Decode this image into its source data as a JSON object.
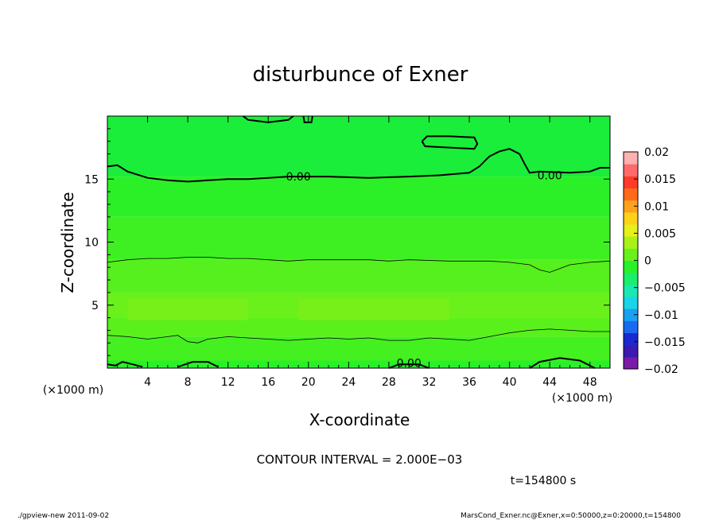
{
  "chart_data": {
    "type": "heatmap",
    "title": "disturbunce of Exner",
    "xlabel": "X-coordinate",
    "ylabel": "Z-coordinate",
    "x_unit_label": "(×1000 m)",
    "x_unit_label_right": "(×1000 m)",
    "xlim": [
      0,
      50
    ],
    "ylim": [
      0,
      20
    ],
    "x_ticks": [
      4,
      8,
      12,
      16,
      20,
      24,
      28,
      32,
      36,
      40,
      44,
      48
    ],
    "y_ticks": [
      5,
      10,
      15
    ],
    "colorbar": {
      "ticks": [
        "0.02",
        "0.015",
        "0.01",
        "0.005",
        "0",
        "−0.005",
        "−0.01",
        "−0.015",
        "−0.02"
      ],
      "range": [
        -0.02,
        0.02
      ],
      "colors": [
        "#7a1aa8",
        "#3a1ab0",
        "#1a2ad0",
        "#1a6af0",
        "#1aa0f0",
        "#1ad4e8",
        "#1ae8b0",
        "#1aee6a",
        "#2af02a",
        "#6af01a",
        "#aaf01a",
        "#e6f01a",
        "#ffd21a",
        "#ffa21a",
        "#ff6a1a",
        "#ff3a2a",
        "#ff6a6a",
        "#ffb0b0"
      ]
    },
    "bands": [
      {
        "z_from": 0,
        "z_to": 0.6,
        "color": "#2af02a"
      },
      {
        "z_from": 0.6,
        "z_to": 2.5,
        "color": "#44f020"
      },
      {
        "z_from": 2.5,
        "z_to": 4.0,
        "color": "#5af01c"
      },
      {
        "z_from": 4.0,
        "z_to": 6.0,
        "color": "#6af01a"
      },
      {
        "z_from": 6.0,
        "z_to": 8.6,
        "color": "#55f01d"
      },
      {
        "z_from": 8.6,
        "z_to": 12.0,
        "color": "#3ef022"
      },
      {
        "z_from": 12.0,
        "z_to": 15.2,
        "color": "#2cf027"
      },
      {
        "z_from": 15.2,
        "z_to": 20,
        "color": "#1aee3a"
      }
    ],
    "contour_labels": [
      {
        "x": 19,
        "z": 15.2,
        "text": "0.00"
      },
      {
        "x": 44,
        "z": 15.3,
        "text": "0.00"
      },
      {
        "x": 30,
        "z": 0.4,
        "text": "0.00"
      }
    ],
    "contours": {
      "zero_upper": [
        [
          0,
          16.0
        ],
        [
          1,
          16.1
        ],
        [
          2,
          15.6
        ],
        [
          4,
          15.1
        ],
        [
          6,
          14.9
        ],
        [
          8,
          14.8
        ],
        [
          10,
          14.9
        ],
        [
          12,
          15.0
        ],
        [
          14,
          15.0
        ],
        [
          16,
          15.1
        ],
        [
          18,
          15.2
        ],
        [
          22,
          15.2
        ],
        [
          26,
          15.1
        ],
        [
          30,
          15.2
        ],
        [
          33,
          15.3
        ],
        [
          36,
          15.5
        ],
        [
          37,
          16.0
        ],
        [
          38,
          16.8
        ],
        [
          39,
          17.2
        ],
        [
          40,
          17.4
        ],
        [
          41,
          17.0
        ],
        [
          41.5,
          16.2
        ],
        [
          42,
          15.5
        ],
        [
          43,
          15.6
        ],
        [
          46,
          15.5
        ],
        [
          48,
          15.6
        ],
        [
          49,
          15.9
        ],
        [
          50,
          15.9
        ]
      ],
      "zero_top_left": [
        [
          13.5,
          20
        ],
        [
          14,
          19.7
        ],
        [
          16,
          19.5
        ],
        [
          18,
          19.7
        ],
        [
          18.5,
          20
        ]
      ],
      "zero_top_small": [
        [
          19.5,
          20
        ],
        [
          19.6,
          19.5
        ],
        [
          20.3,
          19.5
        ],
        [
          20.4,
          20
        ]
      ],
      "zero_closed": [
        [
          31.3,
          18.0
        ],
        [
          31.6,
          17.6
        ],
        [
          34,
          17.5
        ],
        [
          36.5,
          17.4
        ],
        [
          36.8,
          17.8
        ],
        [
          36.5,
          18.3
        ],
        [
          34,
          18.4
        ],
        [
          31.8,
          18.4
        ],
        [
          31.3,
          18.0
        ]
      ],
      "mid": [
        [
          0,
          8.4
        ],
        [
          2,
          8.6
        ],
        [
          4,
          8.7
        ],
        [
          6,
          8.7
        ],
        [
          8,
          8.8
        ],
        [
          10,
          8.8
        ],
        [
          12,
          8.7
        ],
        [
          14,
          8.7
        ],
        [
          16,
          8.6
        ],
        [
          18,
          8.5
        ],
        [
          20,
          8.6
        ],
        [
          22,
          8.6
        ],
        [
          24,
          8.6
        ],
        [
          26,
          8.6
        ],
        [
          28,
          8.5
        ],
        [
          30,
          8.6
        ],
        [
          34,
          8.5
        ],
        [
          38,
          8.5
        ],
        [
          40,
          8.4
        ],
        [
          42,
          8.2
        ],
        [
          43,
          7.8
        ],
        [
          44,
          7.6
        ],
        [
          45,
          7.9
        ],
        [
          46,
          8.2
        ],
        [
          48,
          8.4
        ],
        [
          50,
          8.5
        ]
      ],
      "low": [
        [
          0,
          2.6
        ],
        [
          2,
          2.5
        ],
        [
          4,
          2.3
        ],
        [
          6,
          2.5
        ],
        [
          7,
          2.6
        ],
        [
          8,
          2.1
        ],
        [
          9,
          2.0
        ],
        [
          10,
          2.3
        ],
        [
          12,
          2.5
        ],
        [
          14,
          2.4
        ],
        [
          16,
          2.3
        ],
        [
          18,
          2.2
        ],
        [
          20,
          2.3
        ],
        [
          22,
          2.4
        ],
        [
          24,
          2.3
        ],
        [
          26,
          2.4
        ],
        [
          28,
          2.2
        ],
        [
          30,
          2.2
        ],
        [
          32,
          2.4
        ],
        [
          34,
          2.3
        ],
        [
          36,
          2.2
        ],
        [
          38,
          2.5
        ],
        [
          40,
          2.8
        ],
        [
          42,
          3.0
        ],
        [
          44,
          3.1
        ],
        [
          46,
          3.0
        ],
        [
          48,
          2.9
        ],
        [
          50,
          2.9
        ]
      ],
      "zero_bottom": [
        [
          0,
          0.3
        ],
        [
          0.8,
          0.2
        ],
        [
          1.5,
          0.5
        ],
        [
          2.5,
          0.3
        ],
        [
          3.5,
          0.1
        ]
      ],
      "zero_bottom2": [
        [
          7,
          0.1
        ],
        [
          8.5,
          0.5
        ],
        [
          10,
          0.5
        ],
        [
          11,
          0.1
        ]
      ],
      "zero_bottom3": [
        [
          28,
          0
        ],
        [
          29,
          0.3
        ],
        [
          31,
          0.3
        ],
        [
          32,
          0
        ]
      ],
      "zero_bottom4": [
        [
          42,
          0
        ],
        [
          43,
          0.5
        ],
        [
          45,
          0.8
        ],
        [
          47,
          0.6
        ],
        [
          48.5,
          0
        ]
      ]
    }
  },
  "contour_interval_text": "CONTOUR INTERVAL = 2.000E−03",
  "time_text": "t=154800 s",
  "footer_left": "./gpview-new   2011-09-02",
  "footer_right": "MarsCond_Exner.nc@Exner,x=0:50000,z=0:20000,t=154800"
}
